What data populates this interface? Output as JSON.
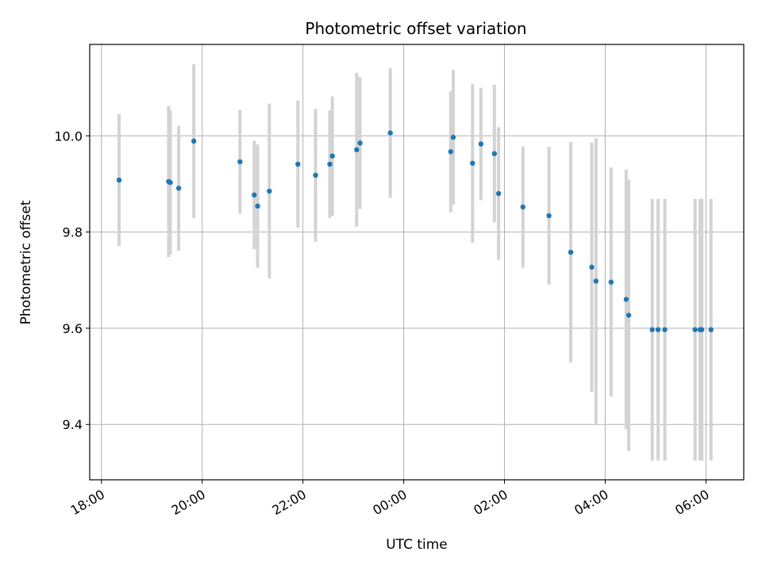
{
  "chart_data": {
    "type": "scatter",
    "title": "Photometric offset variation",
    "xlabel": "UTC time",
    "ylabel": "Photometric offset",
    "x_unit": "UTC clock time; times after midnight carry the next-day suffix +1",
    "xlim": [
      "17:46",
      "30:45"
    ],
    "ylim": [
      9.285,
      10.19
    ],
    "x_ticks": [
      "18:00",
      "20:00",
      "22:00",
      "00:00",
      "02:00",
      "04:00",
      "06:00"
    ],
    "y_ticks": [
      "9.4",
      "9.6",
      "9.8",
      "10.0"
    ],
    "grid": true,
    "colors": {
      "marker": "#1f77b4",
      "errorbar": "#d3d3d3",
      "grid": "#b0b0b0",
      "frame": "#000000"
    },
    "points": [
      {
        "x": "18:21",
        "y": 9.908,
        "err": 0.137
      },
      {
        "x": "19:20",
        "y": 9.905,
        "err": 0.157
      },
      {
        "x": "19:22",
        "y": 9.903,
        "err": 0.15
      },
      {
        "x": "19:32",
        "y": 9.891,
        "err": 0.13
      },
      {
        "x": "19:50",
        "y": 9.989,
        "err": 0.16
      },
      {
        "x": "20:45",
        "y": 9.946,
        "err": 0.108
      },
      {
        "x": "21:02",
        "y": 9.877,
        "err": 0.113
      },
      {
        "x": "21:06",
        "y": 9.854,
        "err": 0.128
      },
      {
        "x": "21:20",
        "y": 9.885,
        "err": 0.182
      },
      {
        "x": "21:54",
        "y": 9.941,
        "err": 0.132
      },
      {
        "x": "22:15",
        "y": 9.918,
        "err": 0.138
      },
      {
        "x": "22:32",
        "y": 9.941,
        "err": 0.112
      },
      {
        "x": "22:35",
        "y": 9.958,
        "err": 0.124
      },
      {
        "x": "23:04",
        "y": 9.971,
        "err": 0.16
      },
      {
        "x": "23:08",
        "y": 9.985,
        "err": 0.137
      },
      {
        "x": "23:44",
        "y": 10.006,
        "err": 0.135
      },
      {
        "x": "00:56 +1",
        "y": 9.967,
        "err": 0.126
      },
      {
        "x": "00:59 +1",
        "y": 9.997,
        "err": 0.14
      },
      {
        "x": "01:22 +1",
        "y": 9.943,
        "err": 0.165
      },
      {
        "x": "01:32 +1",
        "y": 9.983,
        "err": 0.117
      },
      {
        "x": "01:48 +1",
        "y": 9.963,
        "err": 0.143
      },
      {
        "x": "01:53 +1",
        "y": 9.88,
        "err": 0.138
      },
      {
        "x": "02:22 +1",
        "y": 9.852,
        "err": 0.126
      },
      {
        "x": "02:53 +1",
        "y": 9.834,
        "err": 0.143
      },
      {
        "x": "03:19 +1",
        "y": 9.758,
        "err": 0.229
      },
      {
        "x": "03:44 +1",
        "y": 9.727,
        "err": 0.259
      },
      {
        "x": "03:49 +1",
        "y": 9.698,
        "err": 0.297
      },
      {
        "x": "04:07 +1",
        "y": 9.696,
        "err": 0.238
      },
      {
        "x": "04:25 +1",
        "y": 9.66,
        "err": 0.27
      },
      {
        "x": "04:28 +1",
        "y": 9.627,
        "err": 0.282
      },
      {
        "x": "04:56 +1",
        "y": 9.597,
        "err": 0.272
      },
      {
        "x": "05:03 +1",
        "y": 9.597,
        "err": 0.272
      },
      {
        "x": "05:11 +1",
        "y": 9.597,
        "err": 0.272
      },
      {
        "x": "05:47 +1",
        "y": 9.597,
        "err": 0.272
      },
      {
        "x": "05:53 +1",
        "y": 9.597,
        "err": 0.272
      },
      {
        "x": "05:55 +1",
        "y": 9.597,
        "err": 0.272
      },
      {
        "x": "06:06 +1",
        "y": 9.597,
        "err": 0.272
      }
    ]
  }
}
